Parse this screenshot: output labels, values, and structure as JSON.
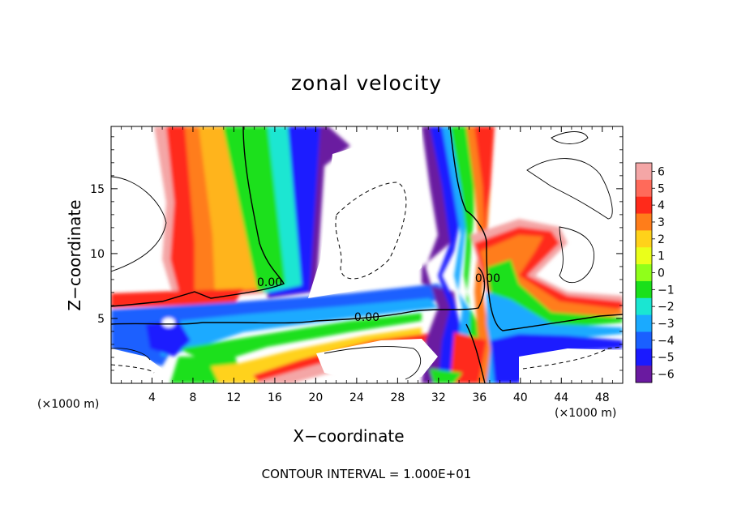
{
  "chart_data": {
    "type": "heatmap",
    "title": "zonal velocity",
    "xlabel": "X−coordinate",
    "ylabel": "Z−coordinate",
    "x_unit": "(×1000 m)",
    "y_unit": "(×1000 m)",
    "xlim": [
      0,
      50
    ],
    "ylim": [
      0,
      19.8
    ],
    "x_ticks": [
      4,
      8,
      12,
      16,
      20,
      24,
      28,
      32,
      36,
      40,
      44,
      48
    ],
    "y_ticks": [
      5,
      10,
      15
    ],
    "colorbar": {
      "levels": [
        6,
        5,
        4,
        3,
        2,
        1,
        0,
        -1,
        -2,
        -3,
        -4,
        -5,
        -6
      ],
      "tick_labels": [
        "6",
        "5",
        "4",
        "3",
        "2",
        "1",
        "0",
        "−1",
        "−2",
        "−3",
        "−4",
        "−5",
        "−6"
      ],
      "colors": [
        "#f4a6a6",
        "#ff6a5a",
        "#ff2a1a",
        "#ff7d1a",
        "#ffd21a",
        "#eaff1a",
        "#90ff1a",
        "#1ae01a",
        "#1ae6d2",
        "#1aaaff",
        "#1a60ff",
        "#1a1aff",
        "#6a1aa0"
      ]
    },
    "contour_labels": [
      {
        "text": "0.00",
        "x": 15.5,
        "z": 7.5
      },
      {
        "text": "0.00",
        "x": 25.0,
        "z": 4.8
      },
      {
        "text": "0.00",
        "x": 36.8,
        "z": 7.8
      }
    ],
    "contour_interval_text": "CONTOUR INTERVAL = 1.000E+01"
  }
}
